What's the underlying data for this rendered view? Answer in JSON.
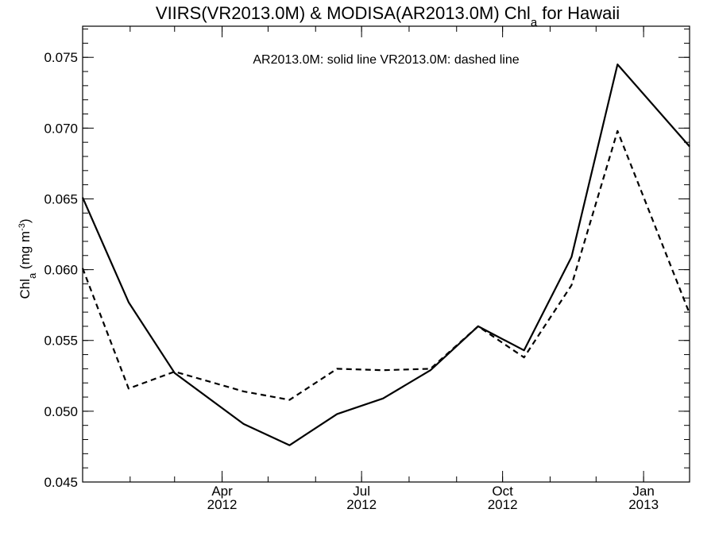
{
  "chart_data": {
    "type": "line",
    "title_main": "VIIRS(VR2013.0M) & MODISA(AR2013.0M)  Chl",
    "title_sub": "a",
    "title_tail": " for Hawaii",
    "ylabel_main": "Chl",
    "ylabel_sub": "a",
    "ylabel_unit": " (mg m",
    "ylabel_sup": "-3",
    "ylabel_close": ")",
    "annotation": "AR2013.0M: solid line   VR2013.0M: dashed line",
    "xlim": [
      "2012-01-01",
      "2013-01-31"
    ],
    "ylim": [
      0.045,
      0.0772
    ],
    "y_ticks": [
      "0.045",
      "0.050",
      "0.055",
      "0.060",
      "0.065",
      "0.070",
      "0.075"
    ],
    "x_major_ticks": [
      {
        "date": "2012-04-01",
        "month": "Apr",
        "year": "2012"
      },
      {
        "date": "2012-07-01",
        "month": "Jul",
        "year": "2012"
      },
      {
        "date": "2012-10-01",
        "month": "Oct",
        "year": "2012"
      },
      {
        "date": "2013-01-01",
        "month": "Jan",
        "year": "2013"
      }
    ],
    "series": [
      {
        "style": "solid",
        "x": [
          "2012-01-01",
          "2012-01-31",
          "2012-03-01",
          "2012-04-15",
          "2012-05-15",
          "2012-06-15",
          "2012-07-15",
          "2012-08-15",
          "2012-09-15",
          "2012-10-15",
          "2012-11-15",
          "2012-12-15",
          "2013-01-31"
        ],
        "y": [
          0.0651,
          0.0577,
          0.0527,
          0.0491,
          0.0476,
          0.0498,
          0.0509,
          0.0529,
          0.056,
          0.0543,
          0.0609,
          0.0745,
          0.0687
        ]
      },
      {
        "style": "dashed",
        "x": [
          "2012-01-01",
          "2012-01-31",
          "2012-03-01",
          "2012-04-15",
          "2012-05-15",
          "2012-06-15",
          "2012-07-15",
          "2012-08-15",
          "2012-09-15",
          "2012-10-15",
          "2012-11-15",
          "2012-12-15",
          "2013-01-31"
        ],
        "y": [
          0.0601,
          0.0516,
          0.0528,
          0.0514,
          0.0508,
          0.053,
          0.0529,
          0.053,
          0.056,
          0.0538,
          0.0589,
          0.0698,
          0.0569
        ]
      }
    ]
  }
}
